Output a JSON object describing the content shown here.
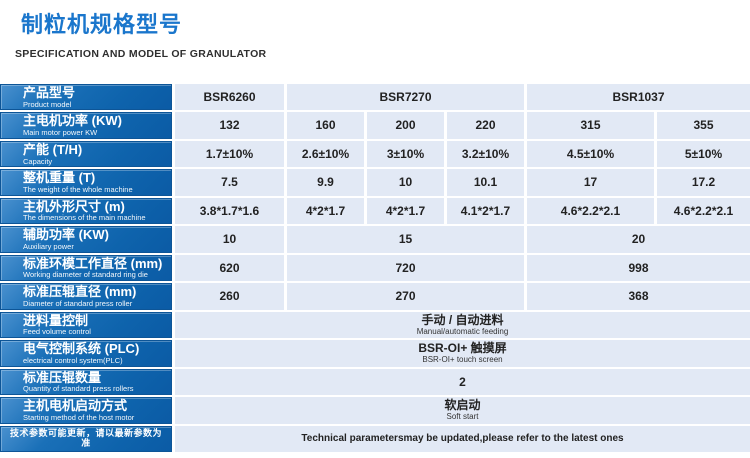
{
  "page": {
    "title_zh": "制粒机规格型号",
    "title_en": "SPECIFICATION AND MODEL OF GRANULATOR"
  },
  "colors": {
    "title_blue": "#1a76cc",
    "header_cell_blue": "#1268b2",
    "header_cell_border": "#0d5597",
    "data_cell_bg": "#e2e9f5",
    "text_dark": "#222222"
  },
  "table": {
    "rows": [
      {
        "header": {
          "zh": "产品型号",
          "en": "Product model"
        },
        "cells": [
          {
            "text": "BSR6260",
            "span": 1
          },
          {
            "text": "BSR7270",
            "span": 3
          },
          {
            "text": "BSR1037",
            "span": 2
          }
        ]
      },
      {
        "header": {
          "zh": "主电机功率 (KW)",
          "en": "Main motor power KW"
        },
        "cells": [
          {
            "text": "132",
            "span": 1
          },
          {
            "text": "160",
            "span": 1
          },
          {
            "text": "200",
            "span": 1
          },
          {
            "text": "220",
            "span": 1
          },
          {
            "text": "315",
            "span": 1
          },
          {
            "text": "355",
            "span": 1
          }
        ]
      },
      {
        "header": {
          "zh": "产能 (T/H)",
          "en": "Capacity"
        },
        "cells": [
          {
            "text": "1.7±10%",
            "span": 1
          },
          {
            "text": "2.6±10%",
            "span": 1
          },
          {
            "text": "3±10%",
            "span": 1
          },
          {
            "text": "3.2±10%",
            "span": 1
          },
          {
            "text": "4.5±10%",
            "span": 1
          },
          {
            "text": "5±10%",
            "span": 1
          }
        ]
      },
      {
        "header": {
          "zh": "整机重量 (T)",
          "en": "The weight of the whole machine"
        },
        "cells": [
          {
            "text": "7.5",
            "span": 1
          },
          {
            "text": "9.9",
            "span": 1
          },
          {
            "text": "10",
            "span": 1
          },
          {
            "text": "10.1",
            "span": 1
          },
          {
            "text": "17",
            "span": 1
          },
          {
            "text": "17.2",
            "span": 1
          }
        ]
      },
      {
        "header": {
          "zh": "主机外形尺寸 (m)",
          "en": "The dimensions of the main machine"
        },
        "cells": [
          {
            "text": "3.8*1.7*1.6",
            "span": 1
          },
          {
            "text": "4*2*1.7",
            "span": 1
          },
          {
            "text": "4*2*1.7",
            "span": 1
          },
          {
            "text": "4.1*2*1.7",
            "span": 1
          },
          {
            "text": "4.6*2.2*2.1",
            "span": 1
          },
          {
            "text": "4.6*2.2*2.1",
            "span": 1
          }
        ]
      },
      {
        "header": {
          "zh": "辅助功率 (KW)",
          "en": "Auxiliary power"
        },
        "cells": [
          {
            "text": "10",
            "span": 1
          },
          {
            "text": "15",
            "span": 3
          },
          {
            "text": "20",
            "span": 2
          }
        ]
      },
      {
        "header": {
          "zh": "标准环模工作直径 (mm)",
          "en": "Working diameter of standard ring die"
        },
        "cells": [
          {
            "text": "620",
            "span": 1
          },
          {
            "text": "720",
            "span": 3
          },
          {
            "text": "998",
            "span": 2
          }
        ]
      },
      {
        "header": {
          "zh": "标准压辊直径 (mm)",
          "en": "Diameter of standard press roller"
        },
        "cells": [
          {
            "text": "260",
            "span": 1
          },
          {
            "text": "270",
            "span": 3
          },
          {
            "text": "368",
            "span": 2
          }
        ]
      },
      {
        "header": {
          "zh": "进料量控制",
          "en": "Feed volume control"
        },
        "cells": [
          {
            "text": "手动 / 自动进料",
            "sub": "Manual/automatic feeding",
            "span": 6
          }
        ]
      },
      {
        "header": {
          "zh": "电气控制系统 (PLC)",
          "en": "electrical control system(PLC)"
        },
        "cells": [
          {
            "text": "BSR-OI+ 触摸屏",
            "sub": "BSR-OI+ touch screen",
            "span": 6
          }
        ]
      },
      {
        "header": {
          "zh": "标准压辊数量",
          "en": "Quantity of standard press rollers"
        },
        "cells": [
          {
            "text": "2",
            "span": 6
          }
        ]
      },
      {
        "header": {
          "zh": "主机电机启动方式",
          "en": "Starting method of the host motor"
        },
        "cells": [
          {
            "text": "软启动",
            "sub": "Soft start",
            "span": 6
          }
        ]
      },
      {
        "header": {
          "zh": "技术参数可能更新，请以最新参数为准",
          "en": "",
          "note": true
        },
        "cells": [
          {
            "text": "Technical parametersmay be updated,please refer to the latest ones",
            "span": 6,
            "note": true
          }
        ]
      }
    ]
  }
}
